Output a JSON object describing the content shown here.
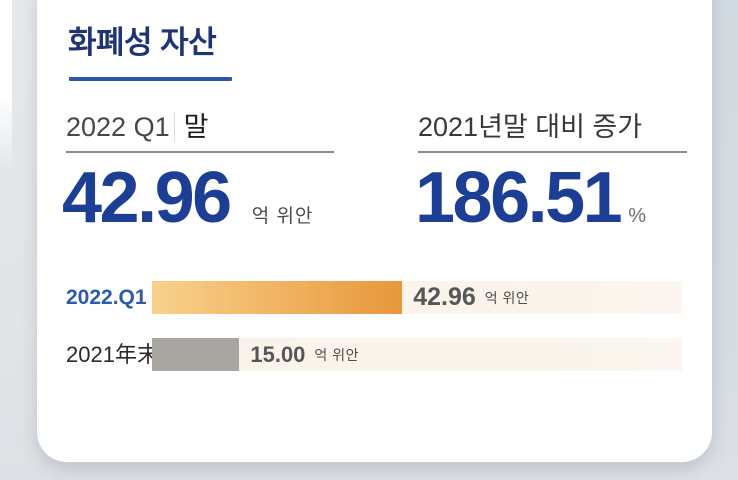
{
  "page": {
    "background_color": "#e3e6e9",
    "right_band_color": "#d4dbe1",
    "card_color": "#ffffff"
  },
  "title": {
    "text": "화폐성 자산",
    "color": "#1e3473",
    "underline_color": "#2b57a8"
  },
  "stats": [
    {
      "period": "2022 Q1",
      "period_suffix": "말",
      "value": "42.96",
      "unit": "억 위안",
      "value_color": "#1c3e94"
    },
    {
      "label": "2021년말 대비 증가",
      "value": "186.51",
      "unit": "%",
      "value_color": "#1c3e94"
    }
  ],
  "chart_data": {
    "type": "bar",
    "orientation": "horizontal",
    "title": "",
    "categories": [
      "2022.Q1",
      "2021年末"
    ],
    "values": [
      42.96,
      15.0
    ],
    "xlim": [
      0,
      91
    ],
    "grid": false,
    "legend": false,
    "unit": "억 위안",
    "track_color": "#faf4ea",
    "rows": [
      {
        "label": "2022.Q1",
        "label_color": "#2d5ca6",
        "value_label": "42.96",
        "unit": "억 위안",
        "bar_color_start": "#f8d18c",
        "bar_color_end": "#e8973b"
      },
      {
        "label": "2021年末",
        "label_color": "#2a2a2a",
        "value_label": "15.00",
        "unit": "억 위안",
        "bar_color_start": "#a9a6a2",
        "bar_color_end": "#a9a6a2"
      }
    ]
  }
}
